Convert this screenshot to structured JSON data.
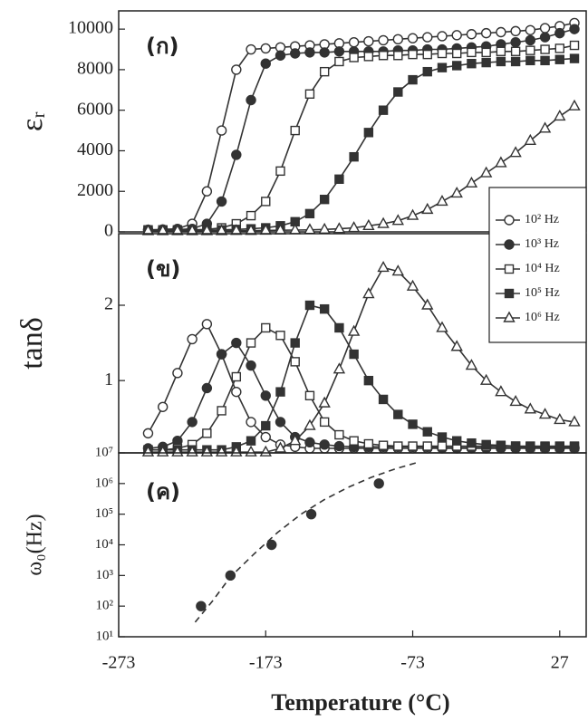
{
  "chart_data": [
    {
      "type": "line",
      "label": "(ก)",
      "ylabel": "εᵣ",
      "xlim": [
        -273,
        45
      ],
      "ylim": [
        0,
        10900
      ],
      "yticks": [
        0,
        2000,
        4000,
        6000,
        8000,
        10000
      ],
      "legend": "right",
      "x": [
        -253,
        -243,
        -233,
        -223,
        -213,
        -203,
        -193,
        -183,
        -173,
        -163,
        -153,
        -143,
        -133,
        -123,
        -113,
        -103,
        -93,
        -83,
        -73,
        -63,
        -53,
        -43,
        -33,
        -23,
        -13,
        -3,
        7,
        17,
        27,
        37
      ],
      "series": [
        {
          "name": "10² Hz",
          "color": "#333333",
          "marker": "circle",
          "filled": false,
          "values": [
            100,
            120,
            150,
            400,
            2000,
            5000,
            8000,
            9000,
            9050,
            9100,
            9150,
            9200,
            9250,
            9300,
            9350,
            9400,
            9450,
            9500,
            9550,
            9600,
            9650,
            9700,
            9750,
            9800,
            9850,
            9900,
            9950,
            10050,
            10150,
            10300
          ]
        },
        {
          "name": "10³ Hz",
          "color": "#333333",
          "marker": "circle",
          "filled": true,
          "values": [
            100,
            100,
            110,
            150,
            400,
            1500,
            3800,
            6500,
            8300,
            8700,
            8800,
            8850,
            8850,
            8900,
            8900,
            8900,
            8900,
            8950,
            8950,
            9000,
            9000,
            9050,
            9100,
            9150,
            9250,
            9350,
            9450,
            9600,
            9800,
            10000
          ]
        },
        {
          "name": "10⁴ Hz",
          "color": "#333333",
          "marker": "square",
          "filled": false,
          "values": [
            100,
            100,
            100,
            100,
            120,
            200,
            400,
            800,
            1500,
            3000,
            5000,
            6800,
            7900,
            8400,
            8600,
            8650,
            8700,
            8700,
            8750,
            8750,
            8800,
            8800,
            8850,
            8850,
            8900,
            8900,
            8950,
            9000,
            9050,
            9200
          ]
        },
        {
          "name": "10⁵ Hz",
          "color": "#333333",
          "marker": "square",
          "filled": true,
          "values": [
            80,
            80,
            80,
            80,
            80,
            100,
            120,
            150,
            200,
            300,
            500,
            900,
            1600,
            2600,
            3700,
            4900,
            6000,
            6900,
            7500,
            7900,
            8100,
            8200,
            8300,
            8350,
            8400,
            8400,
            8450,
            8450,
            8500,
            8550
          ]
        },
        {
          "name": "10⁶ Hz",
          "color": "#333333",
          "marker": "triangle",
          "filled": false,
          "values": [
            50,
            50,
            50,
            50,
            50,
            50,
            60,
            60,
            70,
            80,
            90,
            100,
            120,
            150,
            200,
            300,
            400,
            550,
            800,
            1100,
            1500,
            1900,
            2400,
            2900,
            3400,
            3900,
            4500,
            5100,
            5700,
            6200
          ]
        }
      ]
    },
    {
      "type": "line",
      "label": "(ข)",
      "ylabel": "tanδ",
      "xlim": [
        -273,
        45
      ],
      "ylim": [
        0.04,
        2.95
      ],
      "yticks": [
        1,
        2
      ],
      "x": [
        -253,
        -243,
        -233,
        -223,
        -213,
        -203,
        -193,
        -183,
        -173,
        -163,
        -153,
        -143,
        -133,
        -123,
        -113,
        -103,
        -93,
        -83,
        -73,
        -63,
        -53,
        -43,
        -33,
        -23,
        -13,
        -3,
        7,
        17,
        27,
        37
      ],
      "series": [
        {
          "color": "#333333",
          "marker": "circle",
          "filled": false,
          "values": [
            0.3,
            0.65,
            1.1,
            1.55,
            1.75,
            1.35,
            0.85,
            0.45,
            0.25,
            0.15,
            0.12,
            0.1,
            0.1,
            0.1,
            0.1,
            0.1,
            0.1,
            0.1,
            0.1,
            0.1,
            0.1,
            0.1,
            0.1,
            0.1,
            0.1,
            0.1,
            0.1,
            0.1,
            0.1,
            0.1
          ]
        },
        {
          "color": "#333333",
          "marker": "circle",
          "filled": true,
          "values": [
            0.1,
            0.12,
            0.2,
            0.45,
            0.9,
            1.35,
            1.5,
            1.2,
            0.8,
            0.45,
            0.25,
            0.18,
            0.15,
            0.13,
            0.12,
            0.12,
            0.12,
            0.12,
            0.12,
            0.12,
            0.11,
            0.11,
            0.11,
            0.11,
            0.11,
            0.11,
            0.11,
            0.11,
            0.11,
            0.11
          ]
        },
        {
          "color": "#333333",
          "marker": "square",
          "filled": false,
          "values": [
            0.08,
            0.08,
            0.1,
            0.15,
            0.3,
            0.6,
            1.05,
            1.5,
            1.7,
            1.6,
            1.25,
            0.8,
            0.45,
            0.28,
            0.2,
            0.16,
            0.14,
            0.13,
            0.13,
            0.13,
            0.13,
            0.13,
            0.13,
            0.13,
            0.13,
            0.13,
            0.13,
            0.13,
            0.13,
            0.13
          ]
        },
        {
          "color": "#333333",
          "marker": "square",
          "filled": true,
          "values": [
            0.08,
            0.08,
            0.08,
            0.08,
            0.08,
            0.08,
            0.12,
            0.2,
            0.4,
            0.85,
            1.5,
            2.0,
            1.95,
            1.7,
            1.35,
            1.0,
            0.75,
            0.55,
            0.42,
            0.32,
            0.25,
            0.2,
            0.17,
            0.15,
            0.14,
            0.13,
            0.12,
            0.12,
            0.12,
            0.12
          ]
        },
        {
          "color": "#333333",
          "marker": "triangle",
          "filled": false,
          "values": [
            0.05,
            0.05,
            0.05,
            0.05,
            0.05,
            0.05,
            0.05,
            0.05,
            0.05,
            0.1,
            0.2,
            0.4,
            0.7,
            1.15,
            1.65,
            2.15,
            2.5,
            2.45,
            2.25,
            2.0,
            1.7,
            1.45,
            1.2,
            1.0,
            0.85,
            0.72,
            0.62,
            0.55,
            0.48,
            0.45
          ]
        }
      ]
    },
    {
      "type": "scatter",
      "label": "(ค)",
      "ylabel": "ω₀(Hz)",
      "xlabel": "Temperature (°C)",
      "xlim": [
        -273,
        45
      ],
      "xticks": [
        -273,
        -173,
        -73,
        27
      ],
      "log_y": true,
      "ylim": [
        10,
        10000000
      ],
      "yticks": [
        {
          "value": 10,
          "label": "10¹"
        },
        {
          "value": 100,
          "label": "10²"
        },
        {
          "value": 1000,
          "label": "10³"
        },
        {
          "value": 10000,
          "label": "10⁴"
        },
        {
          "value": 100000,
          "label": "10⁵"
        },
        {
          "value": 1000000,
          "label": "10⁶"
        },
        {
          "value": 10000000,
          "label": "10⁷"
        }
      ],
      "series": [
        {
          "color": "#333333",
          "marker": "circle",
          "filled": true,
          "x": [
            -217,
            -197,
            -169,
            -142,
            -96
          ],
          "values": [
            100,
            1000,
            10000,
            100000,
            1000000
          ]
        }
      ],
      "fit": {
        "color": "#333333",
        "style": "dashed",
        "x": [
          -221,
          -209,
          -197,
          -181,
          -165,
          -149,
          -133,
          -117,
          -101,
          -85,
          -69
        ],
        "values": [
          30,
          150,
          900,
          5000,
          25000,
          100000,
          300000,
          750000,
          1600000,
          3000000,
          5000000
        ]
      }
    }
  ]
}
